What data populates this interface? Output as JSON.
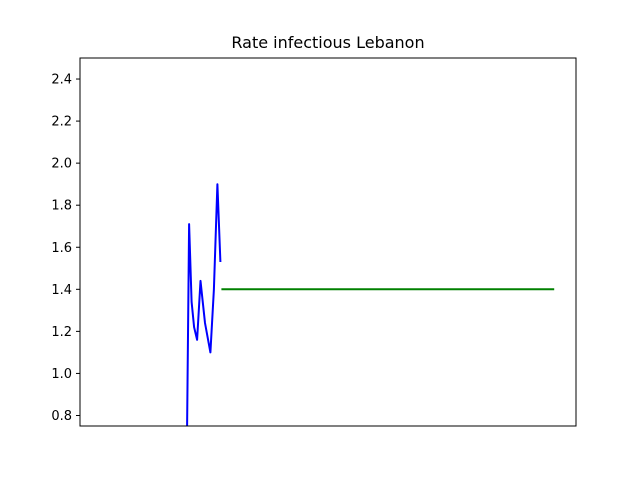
{
  "chart_data": {
    "type": "line",
    "title": "Rate infectious Lebanon",
    "xlabel": "",
    "ylabel": "",
    "x_ticks_visible": false,
    "ylim": [
      0.75,
      2.5
    ],
    "xlim": [
      0,
      100
    ],
    "y_ticks": [
      "0.8",
      "1.0",
      "1.2",
      "1.4",
      "1.6",
      "1.8",
      "2.0",
      "2.2",
      "2.4"
    ],
    "grid": false,
    "series": [
      {
        "color": "#0000ff",
        "x": [
          21.6,
          22.0,
          22.5,
          23.0,
          23.6,
          24.3,
          25.2,
          26.3,
          27.0,
          27.7,
          28.3
        ],
        "y": [
          0.75,
          1.71,
          1.34,
          1.22,
          1.16,
          1.44,
          1.24,
          1.1,
          1.4,
          1.9,
          1.53
        ]
      },
      {
        "color": "#008000",
        "x": [
          28.5,
          95.6
        ],
        "y": [
          1.4,
          1.4
        ]
      }
    ]
  }
}
